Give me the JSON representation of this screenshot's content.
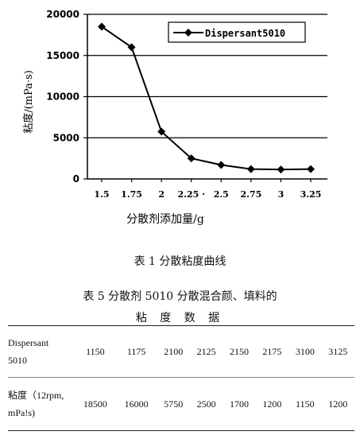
{
  "chart_data": {
    "type": "line",
    "categories": [
      "1.5",
      "1.75",
      "2",
      "2.25",
      "2.5",
      "2.75",
      "3",
      "3.25"
    ],
    "x_tick_labels": [
      "1.5",
      "1.75",
      "2",
      "2.25 ·",
      "2.5",
      "2.75",
      "3",
      "3.25"
    ],
    "series": [
      {
        "name": "Dispersant5010",
        "values": [
          18500,
          16000,
          5750,
          2500,
          1700,
          1200,
          1150,
          1200
        ]
      }
    ],
    "y_ticks": [
      "20000",
      "15000",
      "10000",
      "5000",
      "0"
    ],
    "ylim": [
      0,
      20000
    ],
    "xlabel": "分散剂添加量/g",
    "ylabel": "粘度/(mPa·s)",
    "grid": "horizontal",
    "legend_position": "top-right",
    "line_color": "#000000"
  },
  "figure_caption": "表 1   分散粘度曲线",
  "table": {
    "caption_line1": "表 5   分散剂 5010 分散混合颜、填料的",
    "caption_line2": "粘 度 数 据",
    "row1_header_line1": "Dispersant",
    "row1_header_line2": "5010",
    "row1_values": [
      "1150",
      "1175",
      "2100",
      "2125",
      "2150",
      "2175",
      "3100",
      "3125"
    ],
    "row2_header_line1": "粘度（12rpm,",
    "row2_header_line2": "mPa!s)",
    "row2_values": [
      "18500",
      "16000",
      "5750",
      "2500",
      "1700",
      "1200",
      "1150",
      "1200"
    ]
  }
}
